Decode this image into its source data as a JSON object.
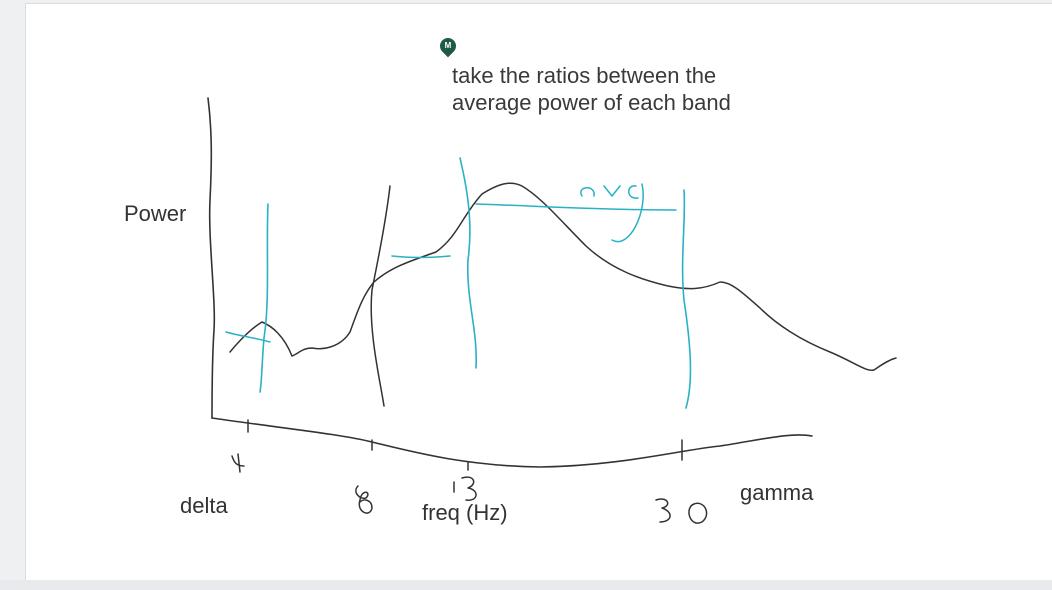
{
  "colors": {
    "axis_ink": "#333333",
    "band_ink": "#29b1c4",
    "comment_badge": "#1e5a44"
  },
  "comment": {
    "badge_initial": "M",
    "line1": "take the ratios between the",
    "line2": "average power of each band"
  },
  "labels": {
    "y_axis": "Power",
    "x_axis": "freq (Hz)",
    "band_low": "delta",
    "band_high": "gamma"
  },
  "handwritten_ticks": [
    "4",
    "8",
    "13",
    "30"
  ],
  "handwritten_note": "avg"
}
